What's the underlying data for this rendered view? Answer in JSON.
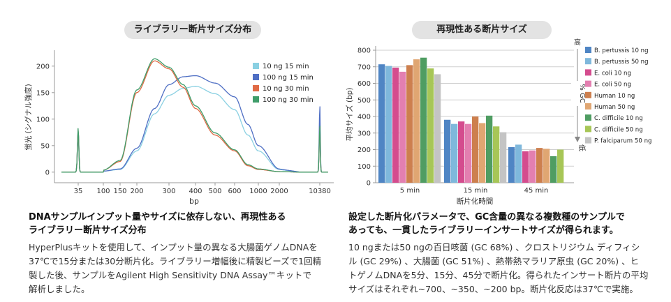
{
  "left_panel": {
    "title": "ライブラリー断片サイズ分布",
    "caption_line1": "DNAサンプルインプット量やサイズに依存しない、再現性ある",
    "caption_line2": "ライブラリー断片サイズ分布",
    "body_lines": [
      "HyperPlusキットを使用して、インプット量の異なる大腸菌ゲノムDNAを",
      "37℃で15分または30分断片化。ライブラリー増幅後に精製ビーズで1回精",
      "製した後、サンプルをAgilent High Sensitivity DNA Assay™キットで",
      "解析しました。"
    ]
  },
  "right_panel": {
    "title": "再現性ある断片サイズ",
    "caption_line1": "設定した断片化パラメータで、GC含量の異なる複数種のサンプルで",
    "caption_line2": "あっても、一貫したライブラリーインサートサイズが得られます。",
    "body_lines": [
      "10 ngまたは50 ngの百日咳菌 (GC 68%) 、クロストリジウム ディフィシ",
      "ル (GC 29%) 、大腸菌 (GC 51%) 、熱帯熱マラリア原虫 (GC 20%) 、ヒ",
      "トゲノムDNAを5分、15分、45分で断片化。得られたインサート断片の平均",
      "サイズはそれぞれ~700、~350、~200 bp。断片化反応は37℃で実施。"
    ]
  },
  "chart_data": [
    {
      "type": "line",
      "xlabel": "bp",
      "ylabel": "蛍光 (シグナル強度)",
      "x_ticks": [
        "35",
        "100",
        "150",
        "200",
        "300",
        "400",
        "500",
        "600",
        "1000",
        "2000",
        "10380"
      ],
      "y_ticks": [
        0,
        50,
        100,
        150,
        200
      ],
      "ylim": [
        -20,
        230
      ],
      "legend_position": "top-right",
      "series": [
        {
          "name": "10 ng 15 min",
          "color": "#8ad0e2",
          "x": [
            35,
            100,
            150,
            200,
            250,
            300,
            350,
            400,
            500,
            600,
            800,
            1000,
            2000,
            10380
          ],
          "y": [
            78,
            2,
            5,
            40,
            110,
            145,
            158,
            162,
            148,
            118,
            70,
            40,
            5,
            95
          ]
        },
        {
          "name": "100 ng 15 min",
          "color": "#4f6fc4",
          "x": [
            35,
            100,
            150,
            200,
            250,
            300,
            350,
            400,
            500,
            600,
            800,
            1000,
            2000,
            10380
          ],
          "y": [
            80,
            2,
            6,
            45,
            120,
            165,
            180,
            182,
            168,
            142,
            90,
            50,
            6,
            128
          ]
        },
        {
          "name": "10 ng 30 min",
          "color": "#e06a45",
          "x": [
            35,
            100,
            150,
            200,
            250,
            300,
            350,
            400,
            500,
            600,
            800,
            1000,
            2000,
            10380
          ],
          "y": [
            82,
            4,
            20,
            150,
            210,
            195,
            160,
            120,
            70,
            40,
            12,
            5,
            1,
            88
          ]
        },
        {
          "name": "100 ng 30 min",
          "color": "#3f9d6a",
          "x": [
            35,
            100,
            150,
            200,
            250,
            300,
            350,
            400,
            500,
            600,
            800,
            1000,
            2000,
            10380
          ],
          "y": [
            84,
            4,
            22,
            155,
            214,
            198,
            165,
            125,
            74,
            42,
            14,
            6,
            1,
            90
          ]
        }
      ]
    },
    {
      "type": "bar",
      "xlabel": "断片化時間",
      "ylabel": "平均サイズ (bp)",
      "categories": [
        "5 min",
        "15 min",
        "45 min"
      ],
      "ylim": [
        0,
        800
      ],
      "y_ticks": [
        0,
        100,
        200,
        300,
        400,
        500,
        600,
        700,
        800
      ],
      "gc_axis": {
        "top": "高",
        "label": "% GC",
        "bottom": "低"
      },
      "legend_position": "right",
      "series": [
        {
          "name": "B. pertussis 10 ng",
          "color": "#4f85c4",
          "values": [
            715,
            380,
            215
          ]
        },
        {
          "name": "B. pertussis 50 ng",
          "color": "#7fb8dc",
          "values": [
            705,
            355,
            230
          ]
        },
        {
          "name": "E. coli 10 ng",
          "color": "#d44c8e",
          "values": [
            695,
            370,
            190
          ]
        },
        {
          "name": "E. coli 50 ng",
          "color": "#e37fb0",
          "values": [
            670,
            355,
            195
          ]
        },
        {
          "name": "Human 10 ng",
          "color": "#cd7f4e",
          "values": [
            710,
            400,
            210
          ]
        },
        {
          "name": "Human 50 ng",
          "color": "#e0a672",
          "values": [
            745,
            360,
            205
          ]
        },
        {
          "name": "C. difficile 10 ng",
          "color": "#4f9d62",
          "values": [
            755,
            405,
            160
          ]
        },
        {
          "name": "C. difficile 50 ng",
          "color": "#a7c657",
          "values": [
            690,
            340,
            200
          ]
        },
        {
          "name": "P. falciparum 50 ng",
          "color": "#c4c4c4",
          "values": [
            655,
            305,
            0
          ]
        }
      ]
    }
  ]
}
